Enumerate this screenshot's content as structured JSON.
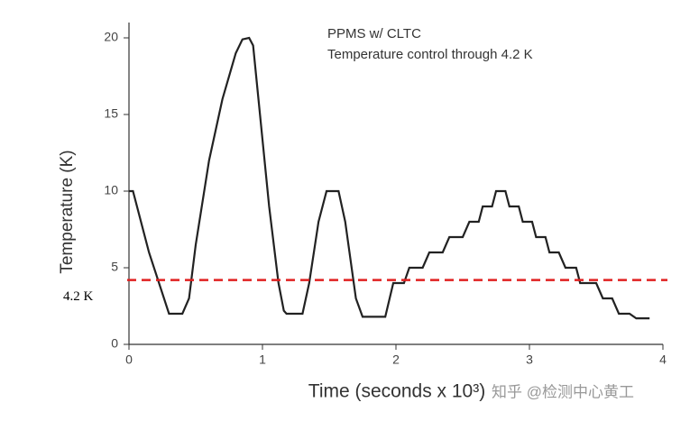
{
  "chart_data": {
    "type": "line",
    "annotations": [
      "PPMS w/ CLTC",
      "Temperature control through 4.2 K"
    ],
    "x_label": "Time (seconds x 10³)",
    "y_label": "Temperature (K)",
    "watermark": "知乎 @检测中心黄工",
    "xlim": [
      0,
      4
    ],
    "ylim": [
      0,
      21
    ],
    "xticks": [
      0,
      1,
      2,
      3,
      4
    ],
    "yticks": [
      0,
      5,
      10,
      15,
      20
    ],
    "reference_line": {
      "value": 4.2,
      "label": "4.2 K",
      "color": "#e02020"
    },
    "series": [
      {
        "color": "#222222",
        "x": [
          0,
          0.03,
          0.15,
          0.3,
          0.4,
          0.45,
          0.5,
          0.6,
          0.7,
          0.8,
          0.85,
          0.9,
          0.93,
          0.97,
          1.05,
          1.12,
          1.16,
          1.18,
          1.3,
          1.35,
          1.42,
          1.48,
          1.57,
          1.62,
          1.7,
          1.75,
          1.92,
          1.98,
          2.06,
          2.1,
          2.2,
          2.25,
          2.35,
          2.4,
          2.5,
          2.55,
          2.62,
          2.65,
          2.72,
          2.75,
          2.82,
          2.85,
          2.92,
          2.95,
          3.02,
          3.05,
          3.12,
          3.15,
          3.22,
          3.27,
          3.35,
          3.38,
          3.5,
          3.55,
          3.62,
          3.67,
          3.75,
          3.8,
          3.9
        ],
        "values": [
          10,
          10,
          6,
          2,
          2,
          3,
          6.5,
          12,
          16,
          19,
          19.9,
          20,
          19.5,
          16,
          9,
          4,
          2.2,
          2,
          2,
          4,
          8,
          10,
          10,
          8,
          3,
          1.8,
          1.8,
          4,
          4,
          5,
          5,
          6,
          6,
          7,
          7,
          8,
          8,
          9,
          9,
          10,
          10,
          9,
          9,
          8,
          8,
          7,
          7,
          6,
          6,
          5,
          5,
          4,
          4,
          3,
          3,
          2,
          2,
          1.7,
          1.7
        ]
      }
    ]
  }
}
